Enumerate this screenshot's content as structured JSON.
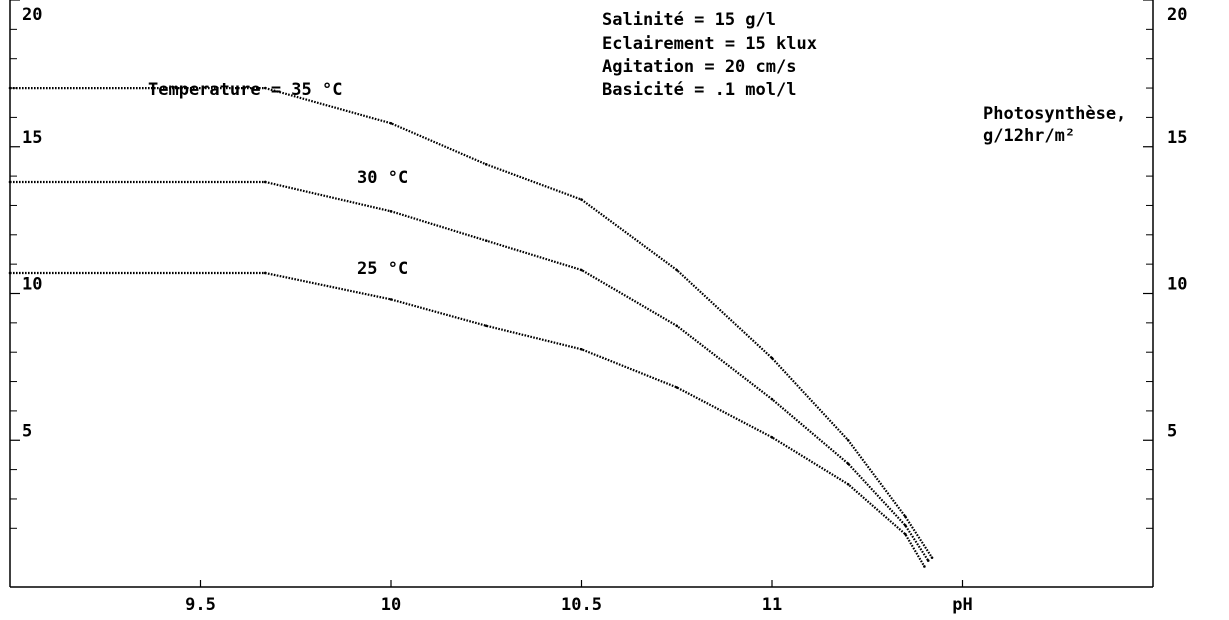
{
  "colors": {
    "background": "#ffffff",
    "ink": "#000000"
  },
  "chart_data": {
    "type": "line",
    "xlabel": "pH",
    "ylabel": [
      "Photosynthèse,",
      "g/12hr/m²"
    ],
    "xlim": [
      9.0,
      12.0
    ],
    "ylim": [
      0,
      20
    ],
    "x_ticks": [
      {
        "value": 9.5,
        "label": "9.5"
      },
      {
        "value": 10.0,
        "label": "10"
      },
      {
        "value": 10.5,
        "label": "10.5"
      },
      {
        "value": 11.0,
        "label": "11"
      },
      {
        "value": 11.5,
        "label": "pH"
      }
    ],
    "y_ticks": [
      {
        "value": 5,
        "label": "5"
      },
      {
        "value": 10,
        "label": "10"
      },
      {
        "value": 15,
        "label": "15"
      },
      {
        "value": 20,
        "label": "20"
      }
    ],
    "y_minor_ticks": [
      2,
      3,
      4,
      6,
      7,
      8,
      9,
      11,
      12,
      13,
      14,
      16,
      17,
      18,
      19
    ],
    "conditions": [
      "Salinité = 15 g/l",
      "Eclairement = 15 klux",
      "Agitation = 20 cm/s",
      "Basicité = .1 mol/l"
    ],
    "series": [
      {
        "name": "Temperature = 35 °C",
        "x": [
          9.0,
          9.67,
          10.0,
          10.25,
          10.5,
          10.75,
          11.0,
          11.2,
          11.35,
          11.42
        ],
        "y": [
          17.0,
          17.0,
          15.8,
          14.4,
          13.2,
          10.8,
          7.8,
          5.0,
          2.4,
          1.0
        ]
      },
      {
        "name": "30 °C",
        "x": [
          9.0,
          9.67,
          10.0,
          10.25,
          10.5,
          10.75,
          11.0,
          11.2,
          11.35,
          11.41
        ],
        "y": [
          13.8,
          13.8,
          12.8,
          11.8,
          10.8,
          8.9,
          6.4,
          4.2,
          2.1,
          0.9
        ]
      },
      {
        "name": "25 °C",
        "x": [
          9.0,
          9.67,
          10.0,
          10.25,
          10.5,
          10.75,
          11.0,
          11.2,
          11.35,
          11.4
        ],
        "y": [
          10.7,
          10.7,
          9.8,
          8.9,
          8.1,
          6.8,
          5.1,
          3.5,
          1.8,
          0.7
        ]
      }
    ]
  }
}
